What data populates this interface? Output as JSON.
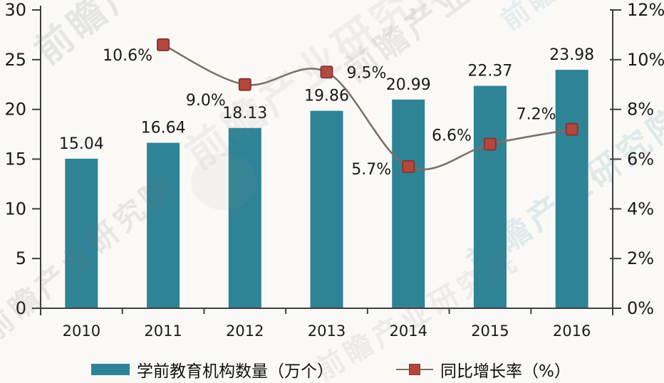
{
  "watermark": {
    "text": "前瞻产业研究院"
  },
  "colors": {
    "background": "#faf9f6",
    "bar": "#2f8396",
    "marker_fill": "#b5463e",
    "marker_border": "#8a3531",
    "line": "#7a6e66",
    "axis": "#3f3f3f",
    "text": "#1a1a1a"
  },
  "chart_data": {
    "type": "bar",
    "subtype": "bar+line combo",
    "categories": [
      "2010",
      "2011",
      "2012",
      "2013",
      "2014",
      "2015",
      "2016"
    ],
    "series": [
      {
        "name": "学前教育机构数量（万个）",
        "type": "bar",
        "axis": "left",
        "values": [
          15.04,
          16.64,
          18.13,
          19.86,
          20.99,
          22.37,
          23.98
        ],
        "labels": [
          "15.04",
          "16.64",
          "18.13",
          "19.86",
          "20.99",
          "22.37",
          "23.98"
        ]
      },
      {
        "name": "同比增长率（%）",
        "type": "line",
        "axis": "right",
        "values": [
          null,
          10.6,
          9.0,
          9.5,
          5.7,
          6.6,
          7.2
        ],
        "labels": [
          null,
          "10.6%",
          "9.0%",
          "9.5%",
          "5.7%",
          "6.6%",
          "7.2%"
        ]
      }
    ],
    "left_axis": {
      "min": 0,
      "max": 30,
      "ticks": [
        "0",
        "5",
        "10",
        "15",
        "20",
        "25",
        "30"
      ]
    },
    "right_axis": {
      "min": 0,
      "max": 12,
      "ticks": [
        "0%",
        "2%",
        "4%",
        "6%",
        "8%",
        "10%",
        "12%"
      ]
    },
    "grid": "off",
    "legend_position": "bottom",
    "legend": [
      {
        "label": "学前教育机构数量（万个）",
        "marker": "bar-swatch"
      },
      {
        "label": "同比增长率（%）",
        "marker": "line-with-square"
      }
    ]
  }
}
